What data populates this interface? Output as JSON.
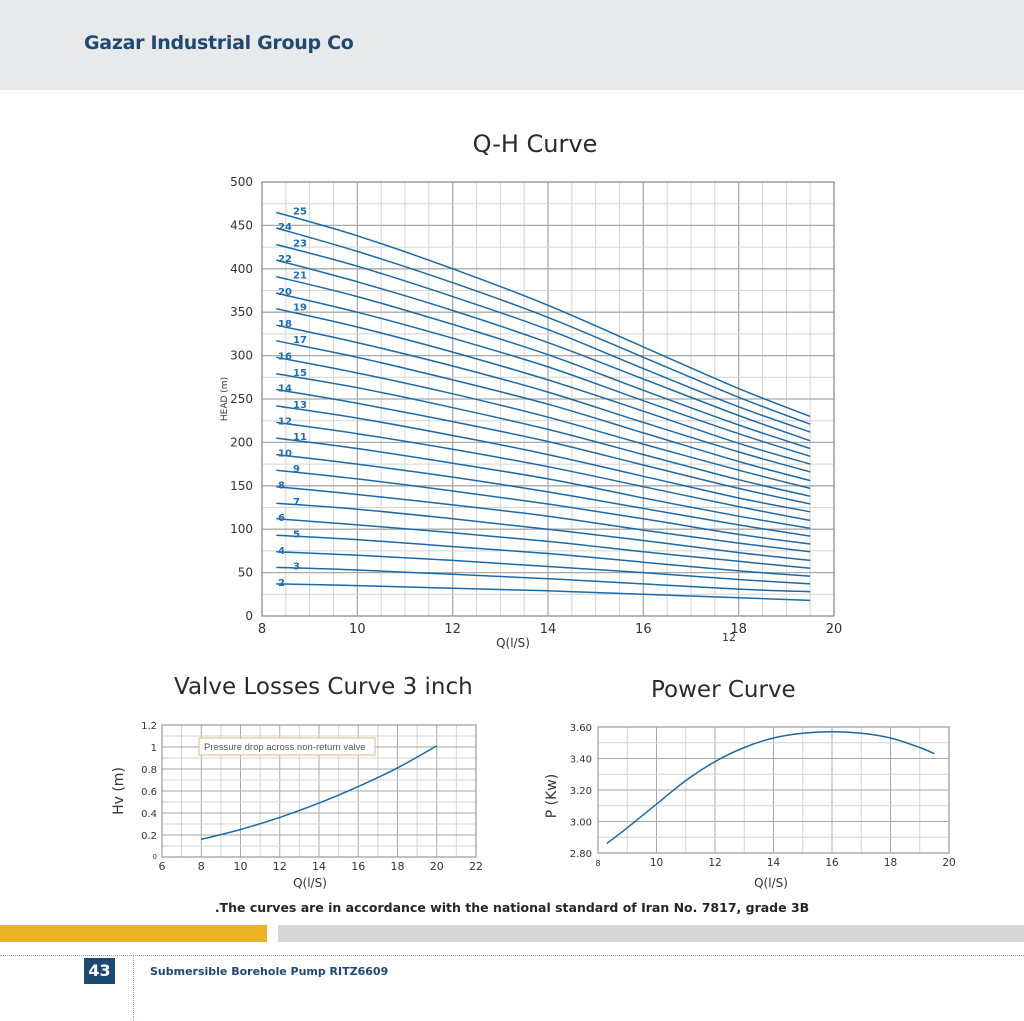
{
  "header": {
    "company": "Gazar Industrial Group Co"
  },
  "note": ".The curves are in accordance with the national standard of Iran No. 7817, grade 3B",
  "footer": {
    "page_number": "43",
    "product": "Submersible Borehole Pump RITZ6609"
  },
  "colors": {
    "curve": "#1a6aa8",
    "label": "#1f6db5",
    "grid": "#bdbdbd",
    "brand": "#1d4a72",
    "accent_yellow": "#e9b123",
    "accent_gray": "#d6d6d6"
  },
  "chart_data": [
    {
      "id": "qh",
      "type": "line",
      "title": "Q-H Curve",
      "xlabel": "Q(l/S)",
      "ylabel": "HEAD (m)",
      "xlim": [
        8,
        20
      ],
      "ylim": [
        0,
        500
      ],
      "xticks": [
        8,
        10,
        12,
        14,
        16,
        18,
        20
      ],
      "yticks": [
        0,
        50,
        100,
        150,
        200,
        250,
        300,
        350,
        400,
        450,
        500
      ],
      "stray_text": "12",
      "grid": true,
      "x": [
        8.3,
        10,
        12,
        14,
        16,
        18,
        19.5
      ],
      "series": [
        {
          "name": "2",
          "values": [
            37,
            35,
            32,
            29,
            25,
            21,
            18
          ]
        },
        {
          "name": "3",
          "values": [
            56,
            53,
            48,
            43,
            37,
            31,
            28
          ]
        },
        {
          "name": "4",
          "values": [
            74,
            70,
            64,
            57,
            50,
            42,
            37
          ]
        },
        {
          "name": "5",
          "values": [
            93,
            88,
            80,
            72,
            62,
            52,
            46
          ]
        },
        {
          "name": "6",
          "values": [
            112,
            105,
            96,
            86,
            74,
            63,
            55
          ]
        },
        {
          "name": "7",
          "values": [
            130,
            123,
            112,
            100,
            87,
            73,
            64
          ]
        },
        {
          "name": "8",
          "values": [
            149,
            140,
            128,
            115,
            99,
            84,
            74
          ]
        },
        {
          "name": "9",
          "values": [
            168,
            158,
            144,
            129,
            112,
            94,
            83
          ]
        },
        {
          "name": "10",
          "values": [
            186,
            175,
            160,
            143,
            124,
            105,
            92
          ]
        },
        {
          "name": "11",
          "values": [
            205,
            193,
            176,
            158,
            136,
            115,
            101
          ]
        },
        {
          "name": "12",
          "values": [
            223,
            210,
            192,
            172,
            149,
            126,
            110
          ]
        },
        {
          "name": "13",
          "values": [
            242,
            228,
            208,
            186,
            161,
            136,
            120
          ]
        },
        {
          "name": "14",
          "values": [
            261,
            245,
            224,
            201,
            174,
            147,
            129
          ]
        },
        {
          "name": "15",
          "values": [
            279,
            263,
            240,
            215,
            186,
            157,
            138
          ]
        },
        {
          "name": "16",
          "values": [
            298,
            280,
            256,
            229,
            198,
            168,
            147
          ]
        },
        {
          "name": "17",
          "values": [
            317,
            298,
            272,
            244,
            211,
            178,
            156
          ]
        },
        {
          "name": "18",
          "values": [
            335,
            315,
            288,
            258,
            223,
            189,
            166
          ]
        },
        {
          "name": "19",
          "values": [
            354,
            333,
            304,
            272,
            236,
            199,
            175
          ]
        },
        {
          "name": "20",
          "values": [
            372,
            350,
            320,
            287,
            248,
            210,
            184
          ]
        },
        {
          "name": "21",
          "values": [
            391,
            368,
            336,
            301,
            260,
            220,
            193
          ]
        },
        {
          "name": "22",
          "values": [
            410,
            385,
            352,
            315,
            273,
            231,
            202
          ]
        },
        {
          "name": "23",
          "values": [
            428,
            403,
            368,
            330,
            285,
            241,
            212
          ]
        },
        {
          "name": "24",
          "values": [
            447,
            420,
            384,
            344,
            298,
            252,
            221
          ]
        },
        {
          "name": "25",
          "values": [
            465,
            438,
            400,
            358,
            310,
            262,
            230
          ]
        }
      ]
    },
    {
      "id": "valve",
      "type": "line",
      "title": "Valve Losses Curve 3 inch",
      "xlabel": "Q(l/S)",
      "ylabel": "Hv (m)",
      "xlim": [
        6,
        22
      ],
      "ylim": [
        0,
        1.2
      ],
      "xticks": [
        6,
        8,
        10,
        12,
        14,
        16,
        18,
        20,
        22
      ],
      "ytick_labels": [
        "0",
        "0.2",
        "0.4",
        "0.6",
        "0.8",
        "1",
        "1.2"
      ],
      "annotation": "Pressure drop across non-return valve",
      "grid": true,
      "x": [
        8,
        10,
        12,
        14,
        16,
        18,
        20
      ],
      "values": [
        0.16,
        0.25,
        0.36,
        0.49,
        0.64,
        0.81,
        1.01
      ]
    },
    {
      "id": "power",
      "type": "line",
      "title": "Power Curve",
      "xlabel": "Q(l/S)",
      "ylabel": "P (Kw)",
      "xlim": [
        8,
        20
      ],
      "ylim": [
        2.8,
        3.6
      ],
      "xticks": [
        8,
        10,
        12,
        14,
        16,
        18,
        20
      ],
      "ytick_labels": [
        "2.80",
        "3.00",
        "3.20",
        "3.40",
        "3.60"
      ],
      "grid": true,
      "x": [
        8.3,
        9,
        10,
        11,
        12,
        13,
        14,
        15,
        16,
        17,
        18,
        19,
        19.5
      ],
      "values": [
        2.86,
        2.96,
        3.11,
        3.26,
        3.38,
        3.47,
        3.53,
        3.56,
        3.57,
        3.56,
        3.53,
        3.47,
        3.43
      ]
    }
  ]
}
